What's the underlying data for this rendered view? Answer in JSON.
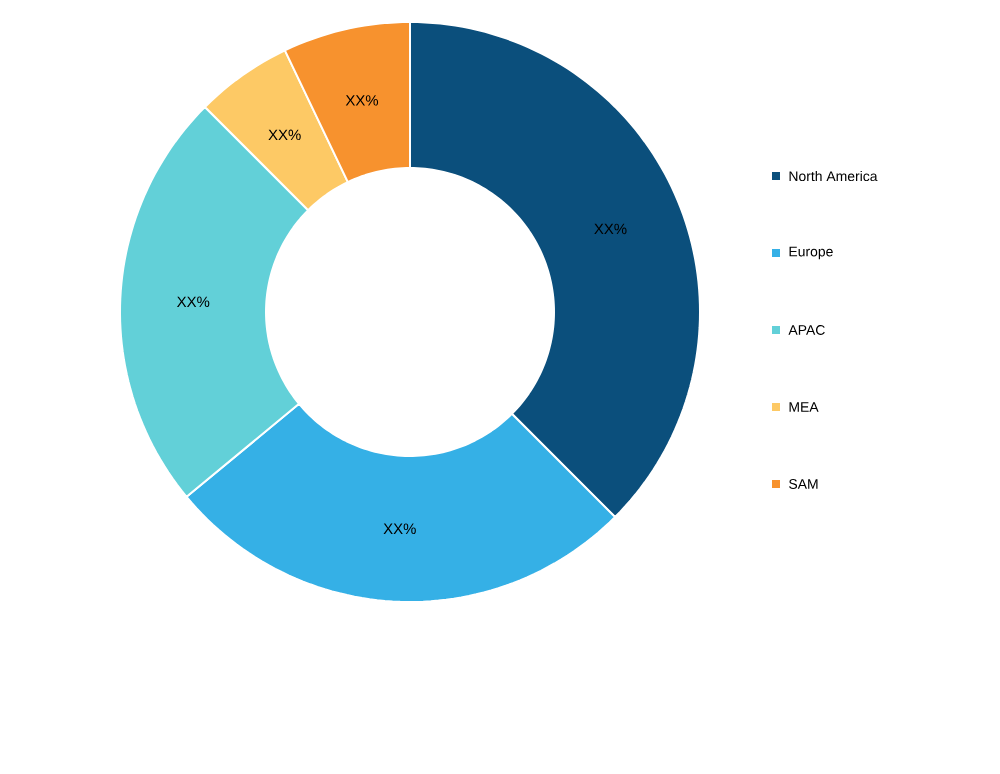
{
  "chart_data": {
    "type": "donut",
    "categories": [
      "North America",
      "Europe",
      "APAC",
      "MEA",
      "SAM"
    ],
    "values": [
      37.5,
      26.5,
      23.5,
      5.4,
      7.1
    ],
    "colors": [
      "#0b4f7c",
      "#35b0e6",
      "#62d0d8",
      "#fdc965",
      "#f7922e"
    ],
    "value_labels": [
      "XX%",
      "XX%",
      "XX%",
      "XX%",
      "XX%"
    ],
    "legend": "right"
  }
}
